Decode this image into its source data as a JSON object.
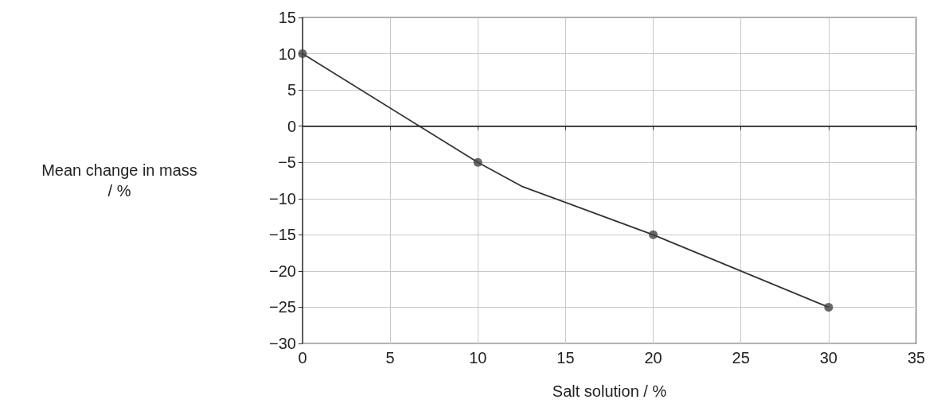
{
  "chart_data": {
    "type": "line",
    "xlabel": "Salt solution / %",
    "ylabel": "Mean change in mass\n/ %",
    "xlim": [
      0,
      35
    ],
    "xticks": [
      0,
      5,
      10,
      15,
      20,
      25,
      30,
      35
    ],
    "ylim": [
      -30,
      15
    ],
    "yticks": [
      -30,
      -25,
      -20,
      -15,
      -10,
      -5,
      0,
      5,
      10,
      15
    ],
    "grid": true,
    "series": [
      {
        "marker": "none",
        "color": "#333333",
        "x": [
          0,
          10,
          12.5,
          20,
          30
        ],
        "values": [
          10,
          -5,
          -8.3,
          -15,
          -25
        ]
      },
      {
        "type": "scatter",
        "marker": "circle",
        "color": "#444444",
        "x": [
          0,
          10,
          20,
          30
        ],
        "values": [
          10,
          -5,
          -15,
          -25
        ]
      }
    ],
    "ref_lines": [
      {
        "axis": "y",
        "value": 0,
        "color": "#222222"
      }
    ]
  }
}
